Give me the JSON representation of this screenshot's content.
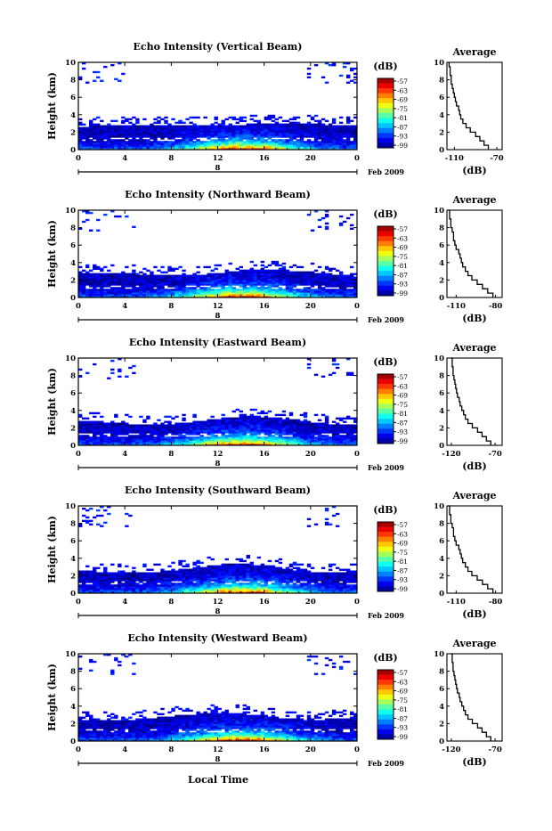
{
  "figure": {
    "time_axis_label": "Local Time",
    "date_label": "Feb 2009",
    "date_day": "8",
    "colorbar_unit": "(dB)",
    "avg_title": "Average",
    "avg_xlabel": "(dB)"
  },
  "chart_data": [
    {
      "type": "heatmap",
      "title": "Echo Intensity (Vertical Beam)",
      "ylabel": "Height (km)",
      "xlabel": "Local Time",
      "x_ticks": [
        "0",
        "4",
        "8",
        "12",
        "16",
        "20",
        "0"
      ],
      "y_ticks": [
        "0",
        "2",
        "4",
        "6",
        "8",
        "10"
      ],
      "xlim": [
        0,
        24
      ],
      "ylim": [
        0,
        10
      ],
      "colorbar": {
        "label": "(dB)",
        "ticks": [
          "-57",
          "-63",
          "-69",
          "-75",
          "-81",
          "-87",
          "-93",
          "-99"
        ],
        "range": [
          -99,
          -57
        ]
      },
      "profile": {
        "title": "Average",
        "xlabel": "(dB)",
        "x_ticks": [
          "-110",
          "-70"
        ],
        "y_ticks": [
          "0",
          "2",
          "4",
          "6",
          "8",
          "10"
        ],
        "xlim": [
          -117,
          -65
        ],
        "heights": [
          0,
          0.5,
          1,
          1.5,
          2,
          2.5,
          3,
          3.5,
          4,
          4.5,
          5,
          5.5,
          6,
          6.5,
          7,
          7.5,
          8,
          8.5,
          9,
          9.5,
          10
        ],
        "values": [
          -78,
          -82,
          -86,
          -90,
          -95,
          -99,
          -102,
          -104,
          -105,
          -106,
          -108,
          -109,
          -110,
          -111,
          -112,
          -113,
          -113,
          -114,
          -114,
          -115,
          -115
        ]
      }
    },
    {
      "type": "heatmap",
      "title": "Echo Intensity (Northward Beam)",
      "ylabel": "Height (km)",
      "xlabel": "Local Time",
      "x_ticks": [
        "0",
        "4",
        "8",
        "12",
        "16",
        "20",
        "0"
      ],
      "y_ticks": [
        "0",
        "2",
        "4",
        "6",
        "8",
        "10"
      ],
      "xlim": [
        0,
        24
      ],
      "ylim": [
        0,
        10
      ],
      "colorbar": {
        "label": "(dB)",
        "ticks": [
          "-57",
          "-63",
          "-69",
          "-75",
          "-81",
          "-87",
          "-93",
          "-99"
        ],
        "range": [
          -99,
          -57
        ]
      },
      "profile": {
        "title": "Average",
        "xlabel": "(dB)",
        "x_ticks": [
          "-110",
          "-80"
        ],
        "y_ticks": [
          "0",
          "2",
          "4",
          "6",
          "8",
          "10"
        ],
        "xlim": [
          -117,
          -75
        ],
        "heights": [
          0,
          0.5,
          1,
          1.5,
          2,
          2.5,
          3,
          3.5,
          4,
          4.5,
          5,
          5.5,
          6,
          6.5,
          7,
          7.5,
          8,
          8.5,
          9,
          9.5,
          10
        ],
        "values": [
          -82,
          -86,
          -90,
          -94,
          -98,
          -101,
          -103,
          -105,
          -106,
          -107,
          -108,
          -110,
          -111,
          -112,
          -112,
          -113,
          -114,
          -114,
          -115,
          -115,
          -116
        ]
      }
    },
    {
      "type": "heatmap",
      "title": "Echo Intensity (Eastward Beam)",
      "ylabel": "Height (km)",
      "xlabel": "Local Time",
      "x_ticks": [
        "0",
        "4",
        "8",
        "12",
        "16",
        "20",
        "0"
      ],
      "y_ticks": [
        "0",
        "2",
        "4",
        "6",
        "8",
        "10"
      ],
      "xlim": [
        0,
        24
      ],
      "ylim": [
        0,
        10
      ],
      "colorbar": {
        "label": "(dB)",
        "ticks": [
          "-57",
          "-63",
          "-69",
          "-75",
          "-81",
          "-87",
          "-93",
          "-99"
        ],
        "range": [
          -99,
          -57
        ]
      },
      "profile": {
        "title": "Average",
        "xlabel": "(dB)",
        "x_ticks": [
          "-120",
          "-70"
        ],
        "y_ticks": [
          "0",
          "2",
          "4",
          "6",
          "8",
          "10"
        ],
        "xlim": [
          -125,
          -62
        ],
        "heights": [
          0,
          0.5,
          1,
          1.5,
          2,
          2.5,
          3,
          3.5,
          4,
          4.5,
          5,
          5.5,
          6,
          6.5,
          7,
          7.5,
          8,
          8.5,
          9,
          9.5,
          10
        ],
        "values": [
          -75,
          -80,
          -85,
          -90,
          -96,
          -101,
          -104,
          -106,
          -108,
          -110,
          -111,
          -113,
          -114,
          -115,
          -116,
          -117,
          -118,
          -118,
          -119,
          -119,
          -120
        ]
      }
    },
    {
      "type": "heatmap",
      "title": "Echo Intensity (Southward Beam)",
      "ylabel": "Height (km)",
      "xlabel": "Local Time",
      "x_ticks": [
        "0",
        "4",
        "8",
        "12",
        "16",
        "20",
        "0"
      ],
      "y_ticks": [
        "0",
        "2",
        "4",
        "6",
        "8",
        "10"
      ],
      "xlim": [
        0,
        24
      ],
      "ylim": [
        0,
        10
      ],
      "colorbar": {
        "label": "(dB)",
        "ticks": [
          "-57",
          "-63",
          "-69",
          "-75",
          "-81",
          "-87",
          "-93",
          "-99"
        ],
        "range": [
          -99,
          -57
        ]
      },
      "profile": {
        "title": "Average",
        "xlabel": "(dB)",
        "x_ticks": [
          "-110",
          "-80"
        ],
        "y_ticks": [
          "0",
          "2",
          "4",
          "6",
          "8",
          "10"
        ],
        "xlim": [
          -117,
          -75
        ],
        "heights": [
          0,
          0.5,
          1,
          1.5,
          2,
          2.5,
          3,
          3.5,
          4,
          4.5,
          5,
          5.5,
          6,
          6.5,
          7,
          7.5,
          8,
          8.5,
          9,
          9.5,
          10
        ],
        "values": [
          -82,
          -86,
          -90,
          -94,
          -98,
          -101,
          -103,
          -105,
          -106,
          -107,
          -108,
          -110,
          -111,
          -112,
          -112,
          -113,
          -114,
          -114,
          -115,
          -115,
          -116
        ]
      }
    },
    {
      "type": "heatmap",
      "title": "Echo Intensity (Westward Beam)",
      "ylabel": "Height (km)",
      "xlabel": "Local Time",
      "x_ticks": [
        "0",
        "4",
        "8",
        "12",
        "16",
        "20",
        "0"
      ],
      "y_ticks": [
        "0",
        "2",
        "4",
        "6",
        "8",
        "10"
      ],
      "xlim": [
        0,
        24
      ],
      "ylim": [
        0,
        10
      ],
      "colorbar": {
        "label": "(dB)",
        "ticks": [
          "-57",
          "-63",
          "-69",
          "-75",
          "-81",
          "-87",
          "-93",
          "-99"
        ],
        "range": [
          -99,
          -57
        ]
      },
      "profile": {
        "title": "Average",
        "xlabel": "(dB)",
        "x_ticks": [
          "-120",
          "-70"
        ],
        "y_ticks": [
          "0",
          "2",
          "4",
          "6",
          "8",
          "10"
        ],
        "xlim": [
          -125,
          -62
        ],
        "heights": [
          0,
          0.5,
          1,
          1.5,
          2,
          2.5,
          3,
          3.5,
          4,
          4.5,
          5,
          5.5,
          6,
          6.5,
          7,
          7.5,
          8,
          8.5,
          9,
          9.5,
          10
        ],
        "values": [
          -75,
          -80,
          -85,
          -90,
          -96,
          -101,
          -104,
          -106,
          -108,
          -110,
          -111,
          -113,
          -114,
          -115,
          -116,
          -117,
          -118,
          -118,
          -119,
          -119,
          -120
        ]
      }
    }
  ]
}
